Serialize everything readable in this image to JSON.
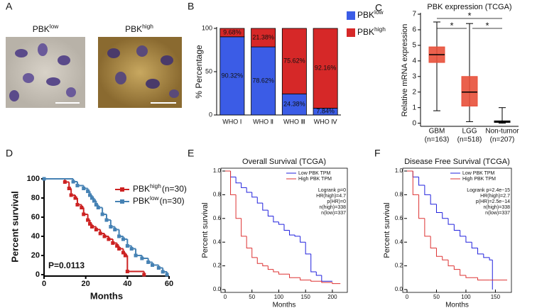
{
  "panel_labels": [
    "A",
    "B",
    "C",
    "D",
    "E",
    "F"
  ],
  "image_panel": {
    "labels": [
      {
        "text": "PBK",
        "superscript": "low"
      },
      {
        "text": "PBK",
        "superscript": "high"
      }
    ]
  },
  "chart_data": [
    {
      "type": "bar",
      "stacked": true,
      "ylabel": "% Percentage",
      "categories": [
        "WHO Ⅰ",
        "WHO Ⅱ",
        "WHO Ⅲ",
        "WHO Ⅳ"
      ],
      "series": [
        {
          "name": "PBK",
          "superscript": "low",
          "color": "#3b5ce6",
          "values": [
            90.32,
            78.62,
            24.38,
            7.84
          ],
          "value_labels": [
            "90.32%",
            "78.62%",
            "24.38%",
            "7.84%"
          ]
        },
        {
          "name": "PBK",
          "superscript": "high",
          "color": "#d62828",
          "values": [
            9.68,
            21.38,
            75.62,
            92.16
          ],
          "value_labels": [
            "9.68%",
            "21.38%",
            "75.62%",
            "92.16%"
          ]
        }
      ],
      "ylim": [
        0,
        100
      ],
      "yticks": [
        0,
        50,
        100
      ],
      "legend": "right"
    },
    {
      "type": "box",
      "title": "PBK expression (TCGA)",
      "ylabel": "Relative mRNA expression",
      "categories": [
        "GBM",
        "LGG",
        "Non-tumor"
      ],
      "category_counts": [
        "(n=163)",
        "(n=518)",
        "(n=207)"
      ],
      "boxes": [
        {
          "min": 0.8,
          "q1": 3.9,
          "median": 4.4,
          "q3": 4.9,
          "max": 6.5
        },
        {
          "min": 0.1,
          "q1": 1.1,
          "median": 2.0,
          "q3": 3.0,
          "max": 6.4
        },
        {
          "min": 0.0,
          "q1": 0.05,
          "median": 0.1,
          "q3": 0.15,
          "max": 1.0
        }
      ],
      "colors": [
        "#e8503a",
        "#e8503a",
        "#111111"
      ],
      "ylim": [
        -0.2,
        7
      ],
      "yticks": [
        0,
        1,
        2,
        3,
        4,
        5,
        6,
        7
      ],
      "annotations": [
        "*",
        "*",
        "*"
      ]
    },
    {
      "type": "line",
      "step": true,
      "markers": true,
      "xlabel": "Months",
      "ylabel": "Percent survival",
      "annotation": "P=0.0113",
      "series": [
        {
          "name": "PBK",
          "superscript": "high",
          "suffix": "(n=30)",
          "color": "#cc2222",
          "x": [
            0,
            10,
            12,
            13,
            15,
            16,
            18,
            19,
            21,
            22,
            23,
            25,
            27,
            29,
            31,
            33,
            35,
            36,
            38,
            39,
            40,
            48
          ],
          "values": [
            100,
            96.7,
            90,
            83,
            80,
            73,
            70,
            63,
            57,
            53,
            50,
            47,
            43,
            40,
            37,
            33,
            30,
            27,
            23,
            20,
            3.3,
            0
          ]
        },
        {
          "name": "PBK",
          "superscript": "low",
          "suffix": "(n=30)",
          "color": "#4682b4",
          "x": [
            0,
            14,
            16,
            19,
            21,
            22,
            23,
            24,
            25,
            26,
            28,
            30,
            32,
            34,
            36,
            38,
            40,
            42,
            44,
            47,
            50,
            52,
            55,
            57,
            59
          ],
          "values": [
            100,
            97,
            93,
            90,
            87,
            83,
            80,
            77,
            73,
            70,
            63,
            57,
            50,
            47,
            40,
            37,
            30,
            27,
            20,
            17,
            13,
            10,
            7,
            3,
            0
          ]
        }
      ],
      "xlim": [
        0,
        60
      ],
      "xticks": [
        0,
        20,
        40,
        60
      ],
      "ylim": [
        0,
        100
      ],
      "yticks": [
        0,
        20,
        40,
        60,
        80,
        100
      ],
      "legend": "upper right"
    },
    {
      "type": "line",
      "step": true,
      "title": "Overall Survival (TCGA)",
      "xlabel": "Months",
      "ylabel": "Percent survival",
      "series": [
        {
          "name": "Low PBK TPM",
          "color": "#2222dd",
          "x": [
            0,
            10,
            20,
            30,
            40,
            50,
            60,
            70,
            80,
            90,
            100,
            110,
            120,
            130,
            140,
            150,
            160,
            170,
            180,
            200
          ],
          "values": [
            1,
            0.95,
            0.9,
            0.86,
            0.82,
            0.78,
            0.73,
            0.67,
            0.62,
            0.57,
            0.55,
            0.5,
            0.46,
            0.45,
            0.4,
            0.3,
            0.15,
            0.12,
            0.07,
            0.07
          ]
        },
        {
          "name": "High PBK TPM",
          "color": "#dd3333",
          "x": [
            0,
            10,
            20,
            30,
            40,
            50,
            60,
            70,
            80,
            90,
            100,
            120,
            140,
            160,
            180,
            200,
            215
          ],
          "values": [
            1,
            0.8,
            0.6,
            0.45,
            0.35,
            0.27,
            0.22,
            0.2,
            0.17,
            0.15,
            0.13,
            0.1,
            0.08,
            0.07,
            0.06,
            0.05,
            0.05
          ]
        }
      ],
      "annotations": [
        "Logrank p=0",
        "HR(high)=4.7",
        "p(HR)=0",
        "n(high)=338",
        "n(low)=337"
      ],
      "xlim": [
        0,
        220
      ],
      "xticks": [
        0,
        50,
        100,
        150,
        200
      ],
      "ylim": [
        0,
        1
      ],
      "yticks": [
        {
          "value": 0,
          "label": "0.0"
        },
        {
          "value": 0.2,
          "label": "0.2"
        },
        {
          "value": 0.4,
          "label": "0.4"
        },
        {
          "value": 0.6,
          "label": "0.6"
        },
        {
          "value": 0.8,
          "label": "0.8"
        },
        {
          "value": 1,
          "label": "1.0"
        }
      ],
      "legend": "upper right"
    },
    {
      "type": "line",
      "step": true,
      "title": "Disease Free Survival (TCGA)",
      "xlabel": "Months",
      "ylabel": "Percent survival",
      "series": [
        {
          "name": "Low PBK TPM",
          "color": "#2222dd",
          "x": [
            0,
            10,
            20,
            30,
            40,
            50,
            60,
            70,
            80,
            90,
            100,
            110,
            120,
            130,
            140,
            145
          ],
          "values": [
            1,
            0.95,
            0.88,
            0.8,
            0.72,
            0.65,
            0.6,
            0.55,
            0.5,
            0.45,
            0.4,
            0.35,
            0.3,
            0.27,
            0.25,
            0
          ]
        },
        {
          "name": "High PBK TPM",
          "color": "#dd3333",
          "x": [
            0,
            10,
            20,
            30,
            40,
            50,
            60,
            70,
            80,
            90,
            100,
            120,
            140,
            170
          ],
          "values": [
            1,
            0.8,
            0.6,
            0.45,
            0.35,
            0.28,
            0.25,
            0.2,
            0.17,
            0.12,
            0.1,
            0.08,
            0.08,
            0.08
          ]
        }
      ],
      "annotations": [
        "Logrank p=2.4e−15",
        "HR(high)=2.7",
        "p(HR)=2.5e−14",
        "n(high)=338",
        "n(low)=337"
      ],
      "xlim": [
        0,
        170
      ],
      "xticks": [
        0,
        50,
        100,
        150
      ],
      "ylim": [
        0,
        1
      ],
      "yticks": [
        {
          "value": 0,
          "label": "0.0"
        },
        {
          "value": 0.2,
          "label": "0.2"
        },
        {
          "value": 0.4,
          "label": "0.4"
        },
        {
          "value": 0.6,
          "label": "0.6"
        },
        {
          "value": 0.8,
          "label": "0.8"
        },
        {
          "value": 1,
          "label": "1.0"
        }
      ],
      "legend": "upper right"
    }
  ]
}
